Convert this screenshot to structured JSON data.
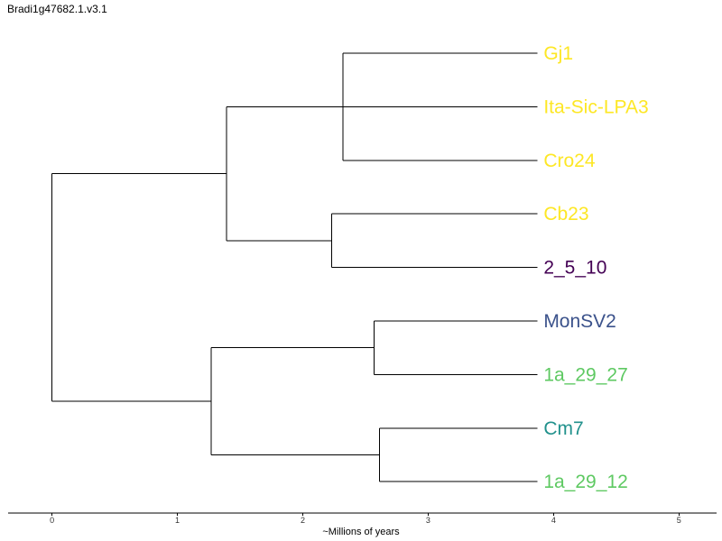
{
  "header": {
    "title": "Bradi1g47682.1.v3.1"
  },
  "chart_data": {
    "type": "dendrogram",
    "xlabel": "~Millions of years",
    "xlim": [
      -0.35,
      5.3
    ],
    "x_ticks": [
      "0",
      "1",
      "2",
      "3",
      "4",
      "5"
    ],
    "leaf_depth": 3.87,
    "leaves": [
      {
        "name": "Gj1",
        "color": "#fde725"
      },
      {
        "name": "Ita-Sic-LPA3",
        "color": "#fde725"
      },
      {
        "name": "Cro24",
        "color": "#fde725"
      },
      {
        "name": "Cb23",
        "color": "#fde725"
      },
      {
        "name": "2_5_10",
        "color": "#440154"
      },
      {
        "name": "MonSV2",
        "color": "#3b528b"
      },
      {
        "name": "1a_29_27",
        "color": "#5ec962"
      },
      {
        "name": "Cm7",
        "color": "#21918c"
      },
      {
        "name": "1a_29_12",
        "color": "#5ec962"
      }
    ],
    "tree": {
      "age": 0.0,
      "children": [
        {
          "age": 1.39,
          "children": [
            {
              "age": 2.32,
              "children": [
                {
                  "leaf": 0
                },
                {
                  "leaf": 1
                },
                {
                  "leaf": 2
                }
              ]
            },
            {
              "age": 2.23,
              "children": [
                {
                  "leaf": 3
                },
                {
                  "leaf": 4
                }
              ]
            }
          ]
        },
        {
          "age": 1.27,
          "children": [
            {
              "age": 2.57,
              "children": [
                {
                  "leaf": 5
                },
                {
                  "leaf": 6
                }
              ]
            },
            {
              "age": 2.61,
              "children": [
                {
                  "leaf": 7
                },
                {
                  "leaf": 8
                }
              ]
            }
          ]
        }
      ]
    }
  }
}
